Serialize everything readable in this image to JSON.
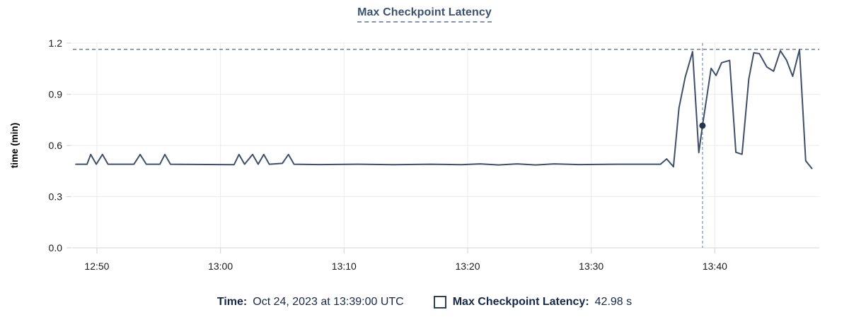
{
  "page": {
    "background": "#ffffff"
  },
  "chart": {
    "title": "Max Checkpoint Latency"
  },
  "legend": {
    "time_label": "Time:",
    "time_value": "Oct 24, 2023 at 13:39:00 UTC",
    "series_checkbox_icon": "empty-square-icon",
    "series_label": "Max Checkpoint Latency:",
    "series_value": "42.98 s"
  },
  "chart_data": {
    "type": "line",
    "title": "Max Checkpoint Latency",
    "xlabel": "",
    "ylabel": "time (min)",
    "ylim": [
      0,
      1.2
    ],
    "grid": true,
    "legend_position": "bottom-center",
    "yticks": [
      {
        "v": 0.0,
        "label": "0.0"
      },
      {
        "v": 0.3,
        "label": "0.3"
      },
      {
        "v": 0.6,
        "label": "0.6"
      },
      {
        "v": 0.9,
        "label": "0.9"
      },
      {
        "v": 1.2,
        "label": "1.2"
      }
    ],
    "t_unit": "minutes after 12:48:00 UTC",
    "t_domain": [
      0,
      60.45
    ],
    "xticks": [
      {
        "t": 2,
        "label": "12:50"
      },
      {
        "t": 12,
        "label": "13:00"
      },
      {
        "t": 22,
        "label": "13:10"
      },
      {
        "t": 32,
        "label": "13:20"
      },
      {
        "t": 42,
        "label": "13:30"
      },
      {
        "t": 52,
        "label": "13:40"
      }
    ],
    "max_reference_line": 1.163,
    "crosshair": {
      "t": 51,
      "time": "13:39:00 UTC"
    },
    "highlight_point": {
      "t": 51,
      "v": 0.716,
      "seconds": 42.98
    },
    "series": [
      {
        "name": "Max Checkpoint Latency",
        "color": "#3e5069",
        "points": [
          [
            0.3,
            0.49
          ],
          [
            1.2,
            0.49
          ],
          [
            1.5,
            0.547
          ],
          [
            1.95,
            0.49
          ],
          [
            2.45,
            0.547
          ],
          [
            2.9,
            0.49
          ],
          [
            5.0,
            0.49
          ],
          [
            5.5,
            0.547
          ],
          [
            6.0,
            0.49
          ],
          [
            7.1,
            0.49
          ],
          [
            7.5,
            0.547
          ],
          [
            7.95,
            0.49
          ],
          [
            13.1,
            0.487
          ],
          [
            13.5,
            0.547
          ],
          [
            13.95,
            0.49
          ],
          [
            14.6,
            0.547
          ],
          [
            15.05,
            0.49
          ],
          [
            15.5,
            0.547
          ],
          [
            15.95,
            0.49
          ],
          [
            17.0,
            0.495
          ],
          [
            17.5,
            0.547
          ],
          [
            17.95,
            0.49
          ],
          [
            20,
            0.488
          ],
          [
            23,
            0.49
          ],
          [
            26,
            0.487
          ],
          [
            29,
            0.49
          ],
          [
            31.5,
            0.487
          ],
          [
            33,
            0.492
          ],
          [
            34.5,
            0.486
          ],
          [
            36,
            0.492
          ],
          [
            37.5,
            0.486
          ],
          [
            39,
            0.492
          ],
          [
            41,
            0.488
          ],
          [
            44,
            0.49
          ],
          [
            47.6,
            0.49
          ],
          [
            48.1,
            0.521
          ],
          [
            48.65,
            0.475
          ],
          [
            49.1,
            0.82
          ],
          [
            49.6,
            1.0
          ],
          [
            50.2,
            1.15
          ],
          [
            50.7,
            0.558
          ],
          [
            51.0,
            0.716
          ],
          [
            51.7,
            1.052
          ],
          [
            52.1,
            1.01
          ],
          [
            52.55,
            1.085
          ],
          [
            53.2,
            1.098
          ],
          [
            53.7,
            0.56
          ],
          [
            54.2,
            0.548
          ],
          [
            54.75,
            0.99
          ],
          [
            55.15,
            1.143
          ],
          [
            55.6,
            1.138
          ],
          [
            56.2,
            1.06
          ],
          [
            56.75,
            1.035
          ],
          [
            57.3,
            1.155
          ],
          [
            57.8,
            1.1
          ],
          [
            58.3,
            1.005
          ],
          [
            58.85,
            1.162
          ],
          [
            59.35,
            0.51
          ],
          [
            59.85,
            0.465
          ]
        ]
      }
    ],
    "colors": {
      "line": "#3e5069",
      "highlight_dot": "#24344f",
      "gridline": "#ededed",
      "gridline_zero": "#e2e2e2",
      "tick_mark": "#d8d8d8",
      "tick_text": "#1b1b1b",
      "axis_title_text": "#000000",
      "max_line": "#5d7390",
      "crosshair": "#91a3b8",
      "title_text": "#3b5170",
      "legend_text": "#16284a"
    }
  }
}
